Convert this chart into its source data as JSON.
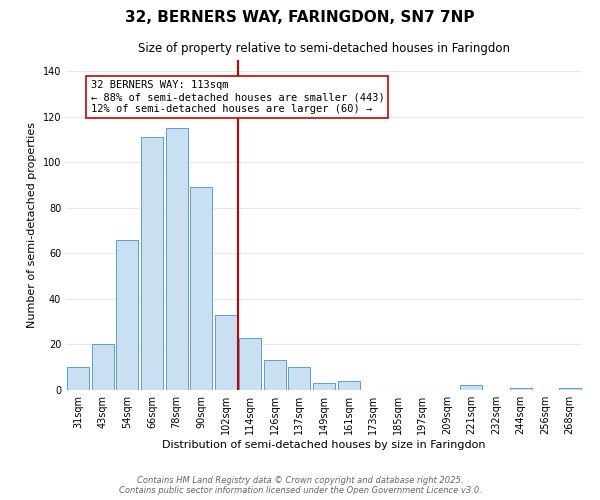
{
  "title": "32, BERNERS WAY, FARINGDON, SN7 7NP",
  "subtitle": "Size of property relative to semi-detached houses in Faringdon",
  "xlabel": "Distribution of semi-detached houses by size in Faringdon",
  "ylabel": "Number of semi-detached properties",
  "bar_labels": [
    "31sqm",
    "43sqm",
    "54sqm",
    "66sqm",
    "78sqm",
    "90sqm",
    "102sqm",
    "114sqm",
    "126sqm",
    "137sqm",
    "149sqm",
    "161sqm",
    "173sqm",
    "185sqm",
    "197sqm",
    "209sqm",
    "221sqm",
    "232sqm",
    "244sqm",
    "256sqm",
    "268sqm"
  ],
  "bar_values": [
    10,
    20,
    66,
    111,
    115,
    89,
    33,
    23,
    13,
    10,
    3,
    4,
    0,
    0,
    0,
    0,
    2,
    0,
    1,
    0,
    1
  ],
  "bar_color": "#c9dff2",
  "bar_edge_color": "#5a9fd4",
  "vline_idx": 7,
  "vline_color": "#cc0000",
  "annotation_title": "32 BERNERS WAY: 113sqm",
  "annotation_line1": "← 88% of semi-detached houses are smaller (443)",
  "annotation_line2": "12% of semi-detached houses are larger (60) →",
  "ylim": [
    0,
    145
  ],
  "footer_line1": "Contains HM Land Registry data © Crown copyright and database right 2025.",
  "footer_line2": "Contains public sector information licensed under the Open Government Licence v3.0.",
  "bg_color": "#ffffff",
  "grid_color": "#e8e8e8",
  "title_fontsize": 11,
  "subtitle_fontsize": 8.5,
  "axis_label_fontsize": 8,
  "tick_fontsize": 7,
  "footer_fontsize": 6,
  "annotation_fontsize": 7.5
}
